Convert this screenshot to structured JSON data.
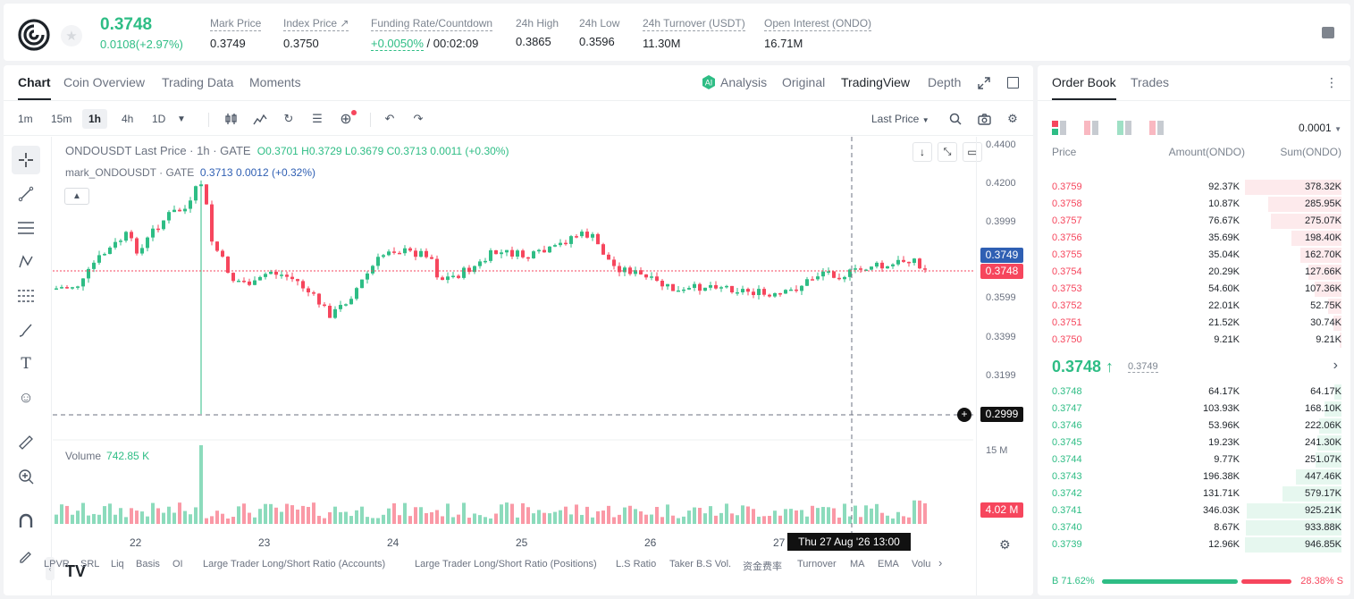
{
  "header": {
    "last_price": "0.3748",
    "change": "0.0108(+2.97%)",
    "mark_price_label": "Mark Price",
    "mark_price": "0.3749",
    "index_price_label": "Index Price ↗",
    "index_price": "0.3750",
    "funding_label": "Funding Rate/Countdown",
    "funding_rate": "+0.0050%",
    "countdown": "/ 00:02:09",
    "high_label": "24h High",
    "high": "0.3865",
    "low_label": "24h Low",
    "low": "0.3596",
    "turnover_label": "24h Turnover (USDT)",
    "turnover": "11.30M",
    "oi_label": "Open Interest (ONDO)",
    "oi": "16.71M"
  },
  "chart_tabs": [
    "Chart",
    "Coin Overview",
    "Trading Data",
    "Moments"
  ],
  "view_tabs": {
    "analysis": "Analysis",
    "original": "Original",
    "tradingview": "TradingView",
    "depth": "Depth"
  },
  "timeframes": [
    "1m",
    "15m",
    "1h",
    "4h",
    "1D"
  ],
  "price_source": "Last Price",
  "legend": {
    "symbol": "ONDOUSDT Last Price · 1h · GATE",
    "ohlc": "O0.3701  H0.3729  L0.3679  C0.3713  0.0011  (+0.30%)",
    "mark_label": "mark_ONDOUSDT · GATE",
    "mark_values": "0.3713  0.0012  (+0.32%)"
  },
  "volume": {
    "label": "Volume",
    "value": "742.85 K"
  },
  "y_ticks": [
    "0.4400",
    "0.4200",
    "0.3999",
    "0.3799",
    "0.3599",
    "0.3399",
    "0.3199"
  ],
  "price_tags": {
    "mark": "0.3749",
    "last": "0.3748",
    "cross": "0.2999",
    "vol_max": "15 M",
    "vol_last": "4.02 M"
  },
  "x_ticks": [
    "22",
    "23",
    "24",
    "25",
    "26",
    "27"
  ],
  "crosshair_time": "Thu 27 Aug '26   13:00",
  "indicators": [
    "LPVR",
    "SRL",
    "Liq",
    "Basis",
    "OI",
    "Large Trader Long/Short Ratio (Accounts)",
    "Large Trader Long/Short Ratio (Positions)",
    "L.S Ratio",
    "Taker B.S Vol.",
    "资金费率",
    "Turnover",
    "MA",
    "EMA",
    "Volu"
  ],
  "orderbook": {
    "tabs": [
      "Order Book",
      "Trades"
    ],
    "precision": "0.0001",
    "headers": {
      "price": "Price",
      "amount": "Amount(ONDO)",
      "sum": "Sum(ONDO)"
    },
    "asks": [
      {
        "price": "0.3759",
        "amount": "92.37K",
        "sum": "378.32K",
        "depth": 1.0
      },
      {
        "price": "0.3758",
        "amount": "10.87K",
        "sum": "285.95K",
        "depth": 0.76
      },
      {
        "price": "0.3757",
        "amount": "76.67K",
        "sum": "275.07K",
        "depth": 0.73
      },
      {
        "price": "0.3756",
        "amount": "35.69K",
        "sum": "198.40K",
        "depth": 0.52
      },
      {
        "price": "0.3755",
        "amount": "35.04K",
        "sum": "162.70K",
        "depth": 0.43
      },
      {
        "price": "0.3754",
        "amount": "20.29K",
        "sum": "127.66K",
        "depth": 0.34
      },
      {
        "price": "0.3753",
        "amount": "54.60K",
        "sum": "107.36K",
        "depth": 0.28
      },
      {
        "price": "0.3752",
        "amount": "22.01K",
        "sum": "52.75K",
        "depth": 0.14
      },
      {
        "price": "0.3751",
        "amount": "21.52K",
        "sum": "30.74K",
        "depth": 0.08
      },
      {
        "price": "0.3750",
        "amount": "9.21K",
        "sum": "9.21K",
        "depth": 0.02
      }
    ],
    "mid_price": "0.3748 ↑",
    "mid_mark": "0.3749",
    "bids": [
      {
        "price": "0.3748",
        "amount": "64.17K",
        "sum": "64.17K",
        "depth": 0.07
      },
      {
        "price": "0.3747",
        "amount": "103.93K",
        "sum": "168.10K",
        "depth": 0.18
      },
      {
        "price": "0.3746",
        "amount": "53.96K",
        "sum": "222.06K",
        "depth": 0.23
      },
      {
        "price": "0.3745",
        "amount": "19.23K",
        "sum": "241.30K",
        "depth": 0.25
      },
      {
        "price": "0.3744",
        "amount": "9.77K",
        "sum": "251.07K",
        "depth": 0.27
      },
      {
        "price": "0.3743",
        "amount": "196.38K",
        "sum": "447.46K",
        "depth": 0.47
      },
      {
        "price": "0.3742",
        "amount": "131.71K",
        "sum": "579.17K",
        "depth": 0.61
      },
      {
        "price": "0.3741",
        "amount": "346.03K",
        "sum": "925.21K",
        "depth": 0.98
      },
      {
        "price": "0.3740",
        "amount": "8.67K",
        "sum": "933.88K",
        "depth": 0.99
      },
      {
        "price": "0.3739",
        "amount": "12.96K",
        "sum": "946.85K",
        "depth": 1.0
      }
    ],
    "buy_ratio_label": "B 71.62%",
    "sell_ratio_label": "28.38% S",
    "buy_ratio": 0.7162
  },
  "colors": {
    "up": "#2ebd85",
    "down": "#f6465d",
    "mark_tag": "#2f5fb3"
  }
}
